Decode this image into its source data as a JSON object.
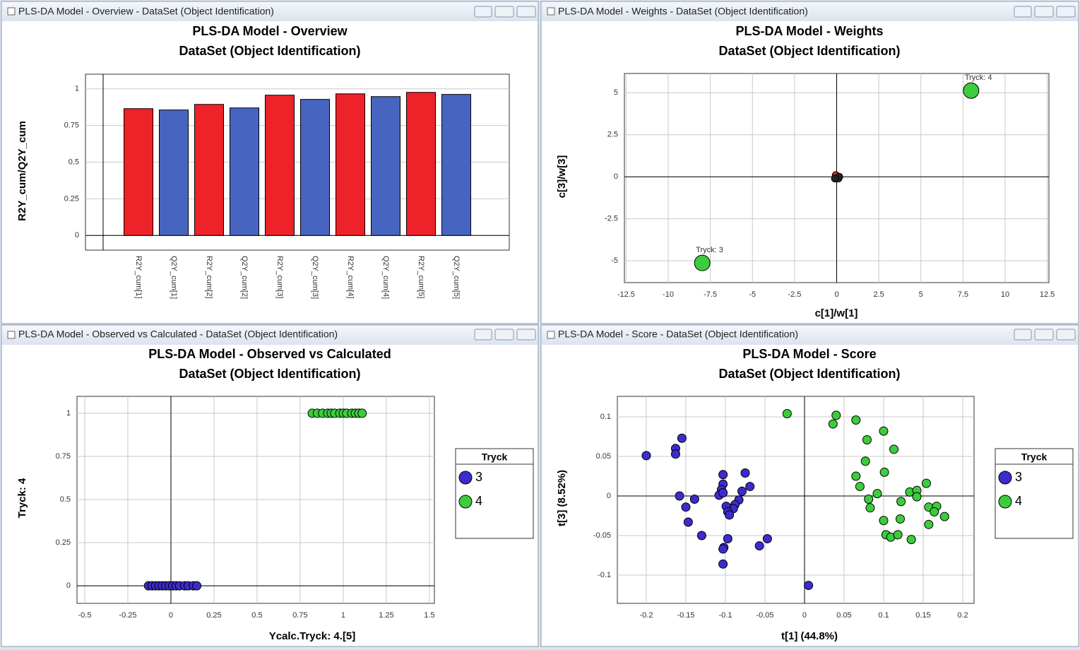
{
  "windows": [
    {
      "title": "PLS-DA Model - Overview - DataSet (Object Identification)"
    },
    {
      "title": "PLS-DA Model - Weights - DataSet (Object Identification)"
    },
    {
      "title": "PLS-DA Model - Observed vs Calculated - DataSet (Object Identification)"
    },
    {
      "title": "PLS-DA Model - Score - DataSet (Object Identification)"
    }
  ],
  "chart_data": [
    {
      "type": "bar",
      "title": "PLS-DA Model - Overview",
      "subtitle": "DataSet (Object Identification)",
      "y_label": "R2Y_cum/Q2Y_cum",
      "categories": [
        "R2Y_cum[1]",
        "Q2Y_cum[1]",
        "R2Y_cum[2]",
        "Q2Y_cum[2]",
        "R2Y_cum[3]",
        "Q2Y_cum[3]",
        "R2Y_cum[4]",
        "Q2Y_cum[4]",
        "R2Y_cum[5]",
        "Q2Y_cum[5]"
      ],
      "values": [
        0.865,
        0.856,
        0.894,
        0.87,
        0.957,
        0.928,
        0.966,
        0.947,
        0.976,
        0.962
      ],
      "colors": [
        "#ee2229",
        "#4765c0",
        "#ee2229",
        "#4765c0",
        "#ee2229",
        "#4765c0",
        "#ee2229",
        "#4765c0",
        "#ee2229",
        "#4765c0"
      ],
      "ylim": [
        -0.1,
        1.1
      ],
      "yticks": [
        0,
        0.25,
        0.5,
        0.75,
        1
      ],
      "grid": true
    },
    {
      "type": "scatter",
      "title": "PLS-DA Model - Weights",
      "subtitle": "DataSet (Object Identification)",
      "x_label": "c[1]/w[1]",
      "y_label": "c[3]/w[3]",
      "series": [
        {
          "color": "#3ccc3c",
          "x": [
            7.98,
            -7.98
          ],
          "y": [
            5.13,
            -5.13
          ],
          "labels": [
            "Tryck: 4",
            "Tryck: 3"
          ]
        },
        {
          "color": "#e02020",
          "x": [
            -0.05,
            0.1
          ],
          "y": [
            0.1,
            -0.1
          ]
        },
        {
          "color": "#222222",
          "x": [
            0.15,
            -0.1
          ],
          "y": [
            0.0,
            -0.1
          ]
        }
      ],
      "xlim": [
        -12.6,
        12.6
      ],
      "xticks": [
        -12.5,
        -10,
        -7.5,
        -5,
        -2.5,
        0,
        2.5,
        5,
        7.5,
        10,
        12.5
      ],
      "ylim": [
        -6.3,
        6.15
      ],
      "yticks": [
        -5,
        -2.5,
        0,
        2.5,
        5
      ],
      "grid": true
    },
    {
      "type": "scatter",
      "title": "PLS-DA Model - Observed vs Calculated",
      "subtitle": "DataSet (Object Identification)",
      "x_label": "Ycalc.Tryck: 4.[5]",
      "y_label": "Tryck: 4",
      "legend_title": "Tryck",
      "series": [
        {
          "name": "3",
          "color": "#3c2ccc",
          "x": [
            -0.13,
            -0.11,
            -0.09,
            -0.07,
            -0.05,
            -0.03,
            -0.01,
            0.01,
            0.03,
            0.05,
            0.08,
            0.1,
            0.13,
            0.15
          ],
          "y": [
            0,
            0,
            0,
            0,
            0,
            0,
            0,
            0,
            0,
            0,
            0,
            0,
            0,
            0
          ]
        },
        {
          "name": "4",
          "color": "#3ccc3c",
          "x": [
            0.82,
            0.85,
            0.88,
            0.91,
            0.93,
            0.95,
            0.98,
            1.0,
            1.02,
            1.05,
            1.07,
            1.09,
            1.11
          ],
          "y": [
            1,
            1,
            1,
            1,
            1,
            1,
            1,
            1,
            1,
            1,
            1,
            1,
            1
          ]
        }
      ],
      "xlim": [
        -0.545,
        1.529
      ],
      "xticks": [
        -0.5,
        -0.25,
        0,
        0.25,
        0.5,
        0.75,
        1,
        1.25,
        1.5
      ],
      "ylim": [
        -0.102,
        1.098
      ],
      "yticks": [
        0,
        0.25,
        0.5,
        0.75,
        1
      ],
      "grid": true
    },
    {
      "type": "scatter",
      "title": "PLS-DA Model - Score",
      "subtitle": "DataSet (Object Identification)",
      "x_label": "t[1] (44.8%)",
      "y_label": "t[3] (8.52%)",
      "legend_title": "Tryck",
      "series": [
        {
          "name": "3",
          "color": "#3c2ccc",
          "x": [
            -0.2,
            -0.163,
            -0.163,
            -0.155,
            -0.158,
            -0.15,
            -0.139,
            -0.147,
            -0.13,
            -0.103,
            -0.103,
            -0.105,
            -0.108,
            -0.103,
            -0.075,
            -0.069,
            -0.079,
            -0.083,
            -0.088,
            -0.09,
            -0.099,
            -0.097,
            -0.095,
            -0.097,
            -0.102,
            -0.103,
            -0.103,
            -0.057,
            -0.047,
            0.005
          ],
          "y": [
            0.051,
            0.06,
            0.053,
            0.073,
            0.0,
            -0.014,
            -0.004,
            -0.033,
            -0.05,
            0.027,
            0.015,
            0.008,
            0.001,
            0.004,
            0.029,
            0.012,
            0.006,
            -0.005,
            -0.011,
            -0.016,
            -0.013,
            -0.02,
            -0.024,
            -0.054,
            -0.065,
            -0.067,
            -0.086,
            -0.063,
            -0.054,
            -0.113
          ]
        },
        {
          "name": "4",
          "color": "#3ccc3c",
          "x": [
            -0.022,
            0.04,
            0.036,
            0.065,
            0.1,
            0.079,
            0.113,
            0.077,
            0.101,
            0.065,
            0.07,
            0.092,
            0.081,
            0.083,
            0.133,
            0.142,
            0.142,
            0.154,
            0.122,
            0.157,
            0.167,
            0.164,
            0.177,
            0.1,
            0.121,
            0.157,
            0.103,
            0.109,
            0.118,
            0.135
          ],
          "y": [
            0.104,
            0.102,
            0.091,
            0.096,
            0.082,
            0.071,
            0.059,
            0.044,
            0.03,
            0.025,
            0.012,
            0.003,
            -0.004,
            -0.015,
            0.005,
            0.007,
            -0.001,
            0.016,
            -0.007,
            -0.014,
            -0.013,
            -0.02,
            -0.026,
            -0.031,
            -0.029,
            -0.036,
            -0.049,
            -0.052,
            -0.049,
            -0.055
          ]
        }
      ],
      "xlim": [
        -0.2366,
        0.2143
      ],
      "xticks": [
        -0.2,
        -0.15,
        -0.1,
        -0.05,
        0,
        0.05,
        0.1,
        0.15,
        0.2
      ],
      "ylim": [
        -0.1357,
        0.1259
      ],
      "yticks": [
        -0.1,
        -0.05,
        0,
        0.05,
        0.1
      ],
      "grid": true
    }
  ]
}
